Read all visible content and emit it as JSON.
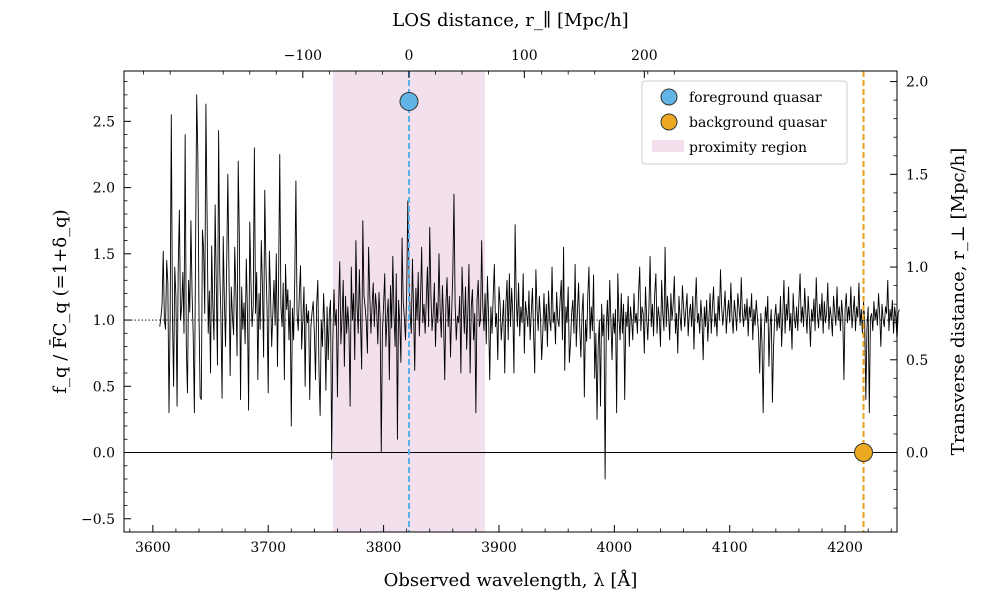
{
  "chart_data": {
    "type": "line",
    "xlabel": "Observed wavelength, λ [Å]",
    "ylabel": "f_q / F̄C_q (=1+δ_q)",
    "top_xlabel": "LOS distance, r_∥ [Mpc/h]",
    "right_ylabel": "Transverse distance, r_⊥ [Mpc/h]",
    "xlim": [
      3575,
      4245
    ],
    "ylim": [
      -0.6,
      2.88
    ],
    "xticks": [
      3600,
      3700,
      3800,
      3900,
      4000,
      4100,
      4200
    ],
    "yticks": [
      -0.5,
      0.0,
      0.5,
      1.0,
      1.5,
      2.0,
      2.5
    ],
    "top_ticks": [
      {
        "label": "−100",
        "wavelength": 3730
      },
      {
        "label": "0",
        "wavelength": 3822
      },
      {
        "label": "100",
        "wavelength": 3922
      },
      {
        "label": "200",
        "wavelength": 4026
      }
    ],
    "right_ticks": [
      {
        "label": "0.0",
        "y": 0.0
      },
      {
        "label": "0.5",
        "y": 0.7
      },
      {
        "label": "1.0",
        "y": 1.4
      },
      {
        "label": "1.5",
        "y": 2.1
      },
      {
        "label": "2.0",
        "y": 2.8
      }
    ],
    "reference_lines": {
      "mean": 1.0,
      "zero": 0.0
    },
    "proximity_region": [
      3756,
      3888
    ],
    "foreground_quasar": {
      "wavelength": 3822,
      "value": 2.65
    },
    "background_quasar": {
      "wavelength": 4216,
      "value": 0.0
    },
    "spectrum": {
      "x_start": 3606,
      "x_step": 1.0,
      "values": [
        0.95,
        1.02,
        1.12,
        1.52,
        1.0,
        0.93,
        1.45,
        1.28,
        0.3,
        1.02,
        2.55,
        1.03,
        0.5,
        1.4,
        1.18,
        0.35,
        1.4,
        1.83,
        1.0,
        1.1,
        1.36,
        0.9,
        2.4,
        0.8,
        0.45,
        1.3,
        1.06,
        1.75,
        1.2,
        0.88,
        0.3,
        1.48,
        2.7,
        2.25,
        1.05,
        0.42,
        0.4,
        1.68,
        1.53,
        1.05,
        2.63,
        1.8,
        0.9,
        1.22,
        0.6,
        1.56,
        1.1,
        0.85,
        1.87,
        1.25,
        0.66,
        2.43,
        1.38,
        1.02,
        0.41,
        1.63,
        1.15,
        0.8,
        1.42,
        2.1,
        1.35,
        0.58,
        1.25,
        1.02,
        0.89,
        1.55,
        1.2,
        0.73,
        2.2,
        1.6,
        0.4,
        1.25,
        0.93,
        1.13,
        0.82,
        1.46,
        1.05,
        0.32,
        1.74,
        1.3,
        0.95,
        1.1,
        2.3,
        1.05,
        1.36,
        0.55,
        1.2,
        0.93,
        1.6,
        1.25,
        0.72,
        1.98,
        1.42,
        1.08,
        0.45,
        1.52,
        1.2,
        0.8,
        1.05,
        1.3,
        0.96,
        1.5,
        0.65,
        1.3,
        2.25,
        1.1,
        0.95,
        1.28,
        0.55,
        1.42,
        1.08,
        1.23,
        0.85,
        1.15,
        0.2,
        1.09,
        0.85,
        1.3,
        2.05,
        1.05,
        0.92,
        1.2,
        1.41,
        0.78,
        1.0,
        1.25,
        0.5,
        1.12,
        0.98,
        1.07,
        0.4,
        0.95,
        1.06,
        1.14,
        0.9,
        0.55,
        1.12,
        1.3,
        0.62,
        0.28,
        1.0,
        0.8,
        1.2,
        0.95,
        0.47,
        1.1,
        0.7,
        1.05,
        1.15,
        -0.05,
        0.86,
        1.23,
        0.96,
        1.08,
        0.42,
        1.1,
        1.44,
        0.82,
        1.02,
        1.3,
        0.65,
        1.18,
        0.9,
        1.1,
        0.92,
        0.35,
        1.4,
        1.0,
        1.2,
        0.7,
        1.6,
        1.1,
        0.9,
        1.38,
        0.98,
        0.63,
        1.75,
        1.18,
        1.1,
        0.98,
        0.75,
        1.55,
        1.2,
        0.9,
        1.1,
        1.28,
        0.95,
        1.2,
        1.08,
        0.82,
        1.21,
        1.02,
        0.0,
        0.92,
        1.11,
        1.35,
        0.8,
        1.02,
        1.16,
        0.55,
        1.26,
        0.94,
        1.48,
        1.05,
        0.8,
        1.35,
        0.1,
        1.15,
        0.98,
        0.68,
        1.62,
        1.14,
        1.02,
        0.85,
        1.2,
        1.9,
        1.33,
        1.05,
        0.9,
        1.46,
        1.07,
        0.62,
        1.24,
        1.0,
        1.36,
        0.88,
        1.16,
        1.55,
        0.98,
        1.12,
        0.9,
        1.15,
        1.4,
        0.95,
        1.7,
        1.2,
        0.92,
        1.05,
        1.28,
        0.8,
        1.13,
        0.98,
        1.5,
        1.08,
        0.87,
        1.26,
        1.0,
        0.55,
        1.12,
        1.32,
        0.95,
        1.18,
        0.72,
        1.06,
        1.35,
        1.95,
        1.12,
        0.85,
        1.03,
        0.98,
        1.18,
        0.6,
        1.4,
        1.12,
        0.9,
        1.25,
        0.78,
        1.05,
        1.42,
        0.6,
        1.1,
        1.23,
        0.85,
        1.05,
        0.3,
        1.15,
        1.3,
        0.95,
        1.0,
        1.6,
        1.1,
        0.92,
        1.2,
        0.82,
        1.33,
        1.03,
        0.55,
        1.1,
        0.9,
        1.18,
        1.42,
        0.95,
        1.05,
        0.7,
        1.25,
        1.12,
        0.85,
        1.0,
        1.15,
        0.6,
        1.12,
        1.3,
        0.85,
        1.35,
        0.95,
        1.24,
        1.05,
        0.6,
        1.72,
        1.15,
        0.95,
        1.28,
        0.88,
        1.1,
        0.98,
        1.35,
        0.75,
        1.14,
        1.05,
        0.95,
        1.22,
        0.85,
        1.05,
        1.24,
        0.9,
        0.6,
        1.38,
        1.08,
        0.92,
        1.18,
        1.02,
        0.7,
        0.9,
        1.2,
        0.92,
        1.12,
        0.8,
        1.22,
        1.0,
        0.92,
        1.4,
        0.98,
        1.06,
        0.82,
        1.21,
        1.0,
        0.95,
        1.15,
        1.3,
        0.85,
        1.55,
        0.62,
        1.1,
        0.98,
        1.25,
        0.68,
        0.82,
        1.05,
        1.15,
        0.9,
        1.42,
        0.8,
        1.05,
        1.28,
        0.95,
        0.72,
        1.05,
        1.2,
        0.42,
        1.0,
        0.84,
        1.18,
        1.4,
        0.86,
        1.1,
        0.92,
        1.34,
        0.56,
        0.9,
        0.25,
        0.8,
        1.0,
        0.35,
        1.12,
        0.88,
        1.04,
        -0.2,
        0.95,
        1.15,
        0.85,
        1.3,
        1.0,
        0.7,
        1.05,
        0.9,
        1.08,
        0.3,
        1.35,
        1.02,
        0.85,
        1.2,
        0.9,
        1.12,
        0.4,
        1.06,
        0.95,
        1.18,
        0.8,
        1.1,
        1.0,
        0.85,
        1.2,
        0.98,
        1.05,
        0.9,
        1.2,
        1.4,
        0.92,
        1.1,
        1.05,
        0.75,
        1.25,
        1.02,
        0.85,
        1.1,
        1.48,
        0.95,
        1.12,
        0.88,
        1.2,
        1.35,
        0.9,
        1.1,
        1.02,
        0.8,
        1.3,
        1.05,
        0.92,
        1.55,
        0.95,
        1.18,
        1.05,
        0.85,
        1.2,
        1.0,
        1.12,
        1.33,
        0.9,
        1.05,
        0.75,
        1.18,
        1.02,
        0.92,
        1.26,
        1.1,
        0.95,
        1.08,
        1.2,
        0.88,
        1.05,
        1.12,
        0.95,
        1.18,
        0.78,
        1.1,
        1.32,
        0.98,
        1.05,
        0.9,
        1.15,
        1.0,
        0.7,
        1.1,
        0.95,
        1.15,
        0.84,
        1.02,
        1.2,
        0.9,
        1.1,
        1.25,
        0.95,
        1.05,
        0.88,
        1.18,
        1.0,
        1.38,
        1.1,
        0.96,
        1.08,
        1.22,
        0.9,
        1.05,
        1.15,
        0.98,
        1.28,
        1.02,
        0.9,
        1.15,
        1.05,
        0.92,
        1.2,
        1.1,
        0.98,
        1.32,
        1.05,
        0.95,
        1.12,
        1.0,
        1.16,
        0.88,
        1.1,
        1.02,
        1.2,
        0.85,
        1.08,
        0.96,
        1.15,
        1.02,
        0.9,
        0.6,
        1.05,
        0.82,
        0.3,
        0.92,
        1.1,
        0.98,
        1.18,
        0.65,
        0.95,
        1.08,
        0.38,
        0.8,
        1.02,
        1.12,
        0.92,
        1.05,
        0.94,
        1.18,
        0.8,
        1.04,
        1.3,
        0.9,
        1.12,
        1.0,
        1.25,
        0.92,
        1.05,
        0.78,
        1.2,
        1.02,
        0.94,
        1.1,
        0.92,
        1.15,
        1.35,
        0.98,
        1.1,
        0.95,
        1.24,
        1.05,
        0.9,
        1.18,
        1.02,
        0.8,
        1.08,
        0.99,
        1.16,
        0.92,
        1.32,
        1.05,
        0.94,
        1.12,
        1.0,
        1.2,
        0.9,
        1.14,
        0.98,
        1.05,
        1.28,
        0.93,
        1.1,
        1.02,
        0.88,
        1.18,
        1.06,
        0.96,
        1.25,
        1.0,
        1.1,
        0.92,
        1.15,
        1.03,
        0.55,
        1.08,
        1.2,
        0.98,
        1.1,
        1.0,
        1.25,
        0.94,
        1.06,
        1.18,
        0.92,
        1.1,
        1.02,
        1.28,
        0.96,
        1.08,
        0.9,
        1.14,
        1.0,
        0.4,
        0.95,
        1.1,
        0.3,
        1.02,
        1.05,
        0.92,
        1.14,
        1.0,
        1.08,
        0.96,
        1.2,
        1.04,
        0.8,
        1.12,
        1.0,
        0.95,
        1.1,
        1.05,
        1.3,
        0.92,
        1.08,
        1.0,
        1.15,
        0.9,
        1.1,
        1.02,
        0.85,
        1.05,
        1.08
      ]
    },
    "legend": [
      {
        "label": "foreground quasar",
        "kind": "marker",
        "color": "#62b4e6"
      },
      {
        "label": "background quasar",
        "kind": "marker",
        "color": "#eca820"
      },
      {
        "label": "proximity region",
        "kind": "patch",
        "color": "#f2e1ed"
      }
    ],
    "colors": {
      "line": "#000000",
      "foreground_line": "#5ab0ea",
      "background_line": "#e8a020",
      "proximity_fill": "#f2e1ed"
    }
  }
}
